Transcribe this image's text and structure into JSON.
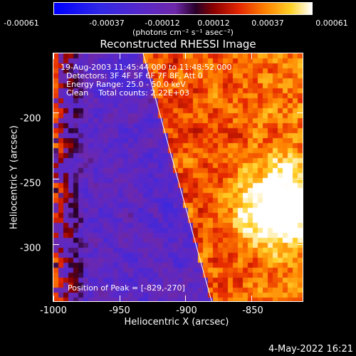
{
  "colorbar": {
    "tick_labels": [
      "-0.00061",
      "-0.00037",
      "-0.00012",
      "0.00012",
      "0.00037",
      "0.00061"
    ],
    "unit_label": "(photons cm⁻² s⁻¹ asec⁻²)"
  },
  "title": "Reconstructed RHESSI Image",
  "info": {
    "time_range": "19-Aug-2003 11:45:44.000 to 11:48:52.000",
    "detectors": "Detectors: 3F 4F 5F 6F 7F 8F, Att 0",
    "energy": "Energy Range: 25.0 - 50.0 keV",
    "clean": "Clean    Total counts: 2.22E+03",
    "peak": "Position of Peak = [-829,-270]"
  },
  "axes": {
    "xlabel": "Heliocentric X (arcsec)",
    "ylabel": "Heliocentric Y (arcsec)",
    "xticks": [
      "-1000",
      "-950",
      "-900",
      "-850"
    ],
    "yticks": [
      "-200",
      "-250",
      "-300"
    ]
  },
  "timestamp": "4-May-2022 16:21",
  "chart_data": {
    "type": "heatmap",
    "title": "Reconstructed RHESSI Image",
    "xlabel": "Heliocentric X (arcsec)",
    "ylabel": "Heliocentric Y (arcsec)",
    "xlim": [
      -1000,
      -811
    ],
    "ylim": [
      -343,
      -155
    ],
    "xticks": [
      -1000,
      -950,
      -900,
      -850
    ],
    "yticks": [
      -200,
      -250,
      -300
    ],
    "color_range": [
      -0.00061,
      0.00061
    ],
    "colorbar_ticks": [
      -0.00061,
      -0.00037,
      -0.00012,
      0.00012,
      0.00037,
      0.00061
    ],
    "peak_position": [
      -829,
      -270
    ],
    "limb_line": [
      [
        -932,
        -155
      ],
      [
        -880,
        -343
      ]
    ]
  }
}
